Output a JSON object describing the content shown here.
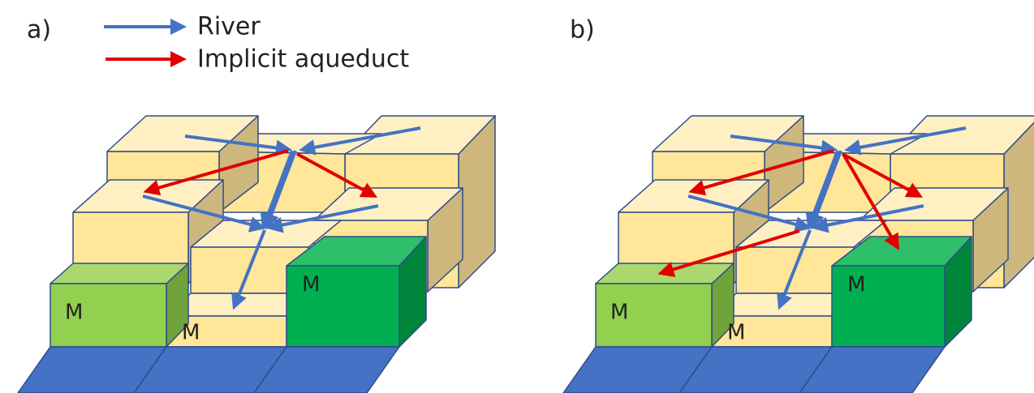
{
  "legend": {
    "items": [
      "River",
      "Implicit aqueduct"
    ]
  },
  "panels": [
    {
      "label": "a)",
      "markers": [
        "M",
        "M",
        "M"
      ]
    },
    {
      "label": "b)",
      "markers": [
        "M",
        "M",
        "M"
      ]
    }
  ]
}
